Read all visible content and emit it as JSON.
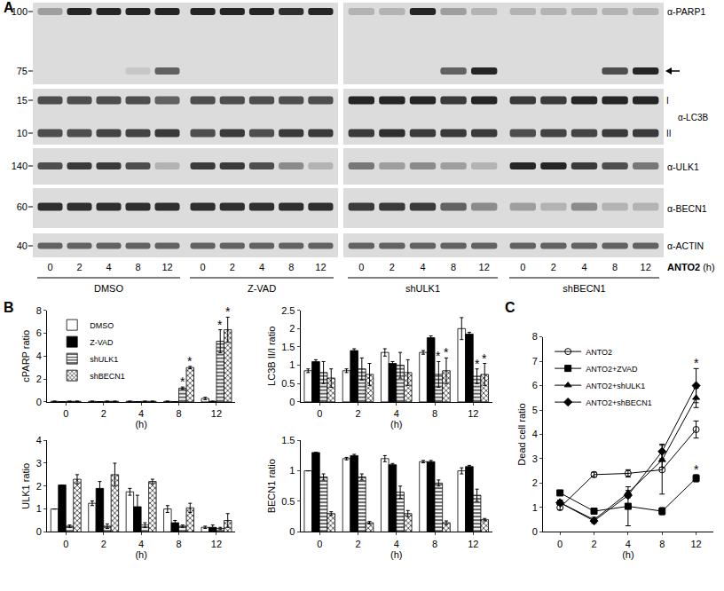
{
  "blot": {
    "panel": "A",
    "treatment": "ANTO2",
    "unit": "(h)",
    "groups": [
      {
        "name": "DMSO",
        "lanes": [
          "0",
          "2",
          "4",
          "8",
          "12"
        ]
      },
      {
        "name": "Z-VAD",
        "lanes": [
          "0",
          "2",
          "4",
          "8",
          "12"
        ]
      },
      {
        "name": "shULK1",
        "lanes": [
          "0",
          "2",
          "4",
          "8",
          "12"
        ]
      },
      {
        "name": "shBECN1",
        "lanes": [
          "0",
          "2",
          "4",
          "8",
          "12"
        ]
      }
    ],
    "rows": [
      {
        "antibody": "α-PARP1",
        "bands": [
          {
            "mw": 100,
            "intensity": [
              0.3,
              0.9,
              0.9,
              0.9,
              0.9,
              0.9,
              0.9,
              0.9,
              0.85,
              0.9,
              0.2,
              0.2,
              0.9,
              0.3,
              0.2,
              0.2,
              0.2,
              0.2,
              0.2,
              0.2
            ]
          },
          {
            "mw": 75,
            "arrow": true,
            "intensity": [
              0,
              0,
              0,
              0.1,
              0.6,
              0,
              0,
              0,
              0,
              0,
              0,
              0,
              0,
              0.6,
              0.9,
              0,
              0,
              0,
              0.7,
              0.9
            ]
          }
        ]
      },
      {
        "antibody": "α-LC3B",
        "bands": [
          {
            "mw": 15,
            "label": "I",
            "intensity": [
              0.7,
              0.7,
              0.7,
              0.7,
              0.6,
              0.7,
              0.7,
              0.7,
              0.7,
              0.7,
              0.9,
              0.9,
              0.9,
              0.8,
              0.9,
              0.8,
              0.8,
              0.9,
              0.9,
              0.9
            ]
          },
          {
            "mw": 10,
            "label": "II",
            "intensity": [
              0.7,
              0.7,
              0.75,
              0.75,
              0.8,
              0.7,
              0.8,
              0.7,
              0.8,
              0.8,
              0.8,
              0.85,
              0.8,
              0.8,
              0.8,
              0.7,
              0.75,
              0.75,
              0.8,
              0.8
            ]
          }
        ]
      },
      {
        "antibody": "α-ULK1",
        "bands": [
          {
            "mw": 140,
            "intensity": [
              0.7,
              0.8,
              0.8,
              0.7,
              0.2,
              0.8,
              0.8,
              0.7,
              0.4,
              0.2,
              0.5,
              0.3,
              0.4,
              0.3,
              0.2,
              0.9,
              0.9,
              0.8,
              0.7,
              0.5
            ]
          }
        ]
      },
      {
        "antibody": "α-BECN1",
        "bands": [
          {
            "mw": 60,
            "intensity": [
              0.85,
              0.85,
              0.85,
              0.85,
              0.85,
              0.85,
              0.85,
              0.85,
              0.85,
              0.85,
              0.8,
              0.8,
              0.8,
              0.6,
              0.4,
              0.3,
              0.2,
              0.4,
              0.2,
              0.2
            ]
          }
        ]
      },
      {
        "antibody": "α-ACTIN",
        "bands": [
          {
            "mw": 40,
            "intensity": [
              0.6,
              0.6,
              0.6,
              0.6,
              0.6,
              0.6,
              0.6,
              0.6,
              0.6,
              0.6,
              0.6,
              0.6,
              0.6,
              0.6,
              0.6,
              0.6,
              0.6,
              0.6,
              0.6,
              0.6
            ]
          }
        ]
      }
    ]
  },
  "chart_data": [
    {
      "type": "bar",
      "panel": "B",
      "y_label": "cPARP ratio",
      "x_label": "(h)",
      "categories": [
        "0",
        "2",
        "4",
        "8",
        "12"
      ],
      "ylim": [
        0,
        8
      ],
      "yticks": [
        0,
        2,
        4,
        6,
        8
      ],
      "grid": false,
      "legend": "top left",
      "series": [
        {
          "name": "DMSO",
          "color": "#ffffff",
          "marker": "solid",
          "values": [
            0.05,
            0.05,
            0.05,
            0.05,
            0.3
          ],
          "errors": [
            0.02,
            0.02,
            0.02,
            0.02,
            0.1
          ]
        },
        {
          "name": "Z-VAD",
          "color": "#000000",
          "marker": "solid",
          "values": [
            0.02,
            0.02,
            0.02,
            0.02,
            0.05
          ],
          "errors": [
            0,
            0,
            0,
            0,
            0.02
          ]
        },
        {
          "name": "shULK1",
          "color": "#ffffff",
          "marker": "hlines",
          "values": [
            0.05,
            0.05,
            0.05,
            1.2,
            5.3
          ],
          "errors": [
            0.02,
            0.02,
            0.02,
            0.1,
            1.0
          ]
        },
        {
          "name": "shBECN1",
          "color": "#ffffff",
          "marker": "checkered",
          "values": [
            0.05,
            0.05,
            0.05,
            3.0,
            6.3
          ],
          "errors": [
            0.02,
            0.02,
            0.02,
            0.1,
            1.1
          ]
        }
      ],
      "annotations": [
        {
          "text": "*",
          "category": "8",
          "series": "shULK1"
        },
        {
          "text": "*",
          "category": "8",
          "series": "shBECN1"
        },
        {
          "text": "*",
          "category": "12",
          "series": "shULK1"
        },
        {
          "text": "*",
          "category": "12",
          "series": "shBECN1"
        }
      ]
    },
    {
      "type": "bar",
      "y_label": "LC3B II/I ratio",
      "x_label": "(h)",
      "categories": [
        "0",
        "2",
        "4",
        "8",
        "12"
      ],
      "ylim": [
        0,
        2.5
      ],
      "yticks": [
        0,
        0.5,
        1,
        1.5,
        2,
        2.5
      ],
      "grid": false,
      "series": [
        {
          "name": "DMSO",
          "color": "#ffffff",
          "marker": "solid",
          "values": [
            0.85,
            0.85,
            1.35,
            1.35,
            2.0
          ],
          "errors": [
            0.05,
            0.05,
            0.1,
            0.05,
            0.3
          ]
        },
        {
          "name": "Z-VAD",
          "color": "#000000",
          "marker": "solid",
          "values": [
            1.1,
            1.4,
            1.05,
            1.75,
            1.85
          ],
          "errors": [
            0.05,
            0.05,
            0.05,
            0.05,
            0.05
          ]
        },
        {
          "name": "shULK1",
          "color": "#ffffff",
          "marker": "hlines",
          "values": [
            0.8,
            0.9,
            1.0,
            0.75,
            0.7
          ],
          "errors": [
            0.3,
            0.3,
            0.35,
            0.35,
            0.2
          ]
        },
        {
          "name": "shBECN1",
          "color": "#ffffff",
          "marker": "checkered",
          "values": [
            0.65,
            0.75,
            0.8,
            0.85,
            0.75
          ],
          "errors": [
            0.25,
            0.3,
            0.35,
            0.35,
            0.3
          ]
        }
      ],
      "annotations": [
        {
          "text": "*",
          "category": "8",
          "series": "shULK1"
        },
        {
          "text": "*",
          "category": "8",
          "series": "shBECN1"
        },
        {
          "text": "*",
          "category": "12",
          "series": "shULK1"
        },
        {
          "text": "*",
          "category": "12",
          "series": "shBECN1"
        }
      ]
    },
    {
      "type": "bar",
      "y_label": "ULK1 ratio",
      "x_label": "(h)",
      "categories": [
        "0",
        "2",
        "4",
        "8",
        "12"
      ],
      "ylim": [
        0,
        4
      ],
      "yticks": [
        0,
        1,
        2,
        3,
        4
      ],
      "grid": false,
      "series": [
        {
          "name": "DMSO",
          "color": "#ffffff",
          "marker": "solid",
          "values": [
            1.0,
            1.25,
            1.75,
            1.0,
            0.2
          ],
          "errors": [
            0,
            0.1,
            0.15,
            0.15,
            0.05
          ]
        },
        {
          "name": "Z-VAD",
          "color": "#000000",
          "marker": "solid",
          "values": [
            2.05,
            1.9,
            1.1,
            0.4,
            0.2
          ],
          "errors": [
            0,
            0.3,
            0.5,
            0.1,
            0.1
          ]
        },
        {
          "name": "shULK1",
          "color": "#ffffff",
          "marker": "hlines",
          "values": [
            0.25,
            0.25,
            0.3,
            0.25,
            0.15
          ],
          "errors": [
            0.05,
            0.1,
            0.1,
            0.05,
            0.05
          ]
        },
        {
          "name": "shBECN1",
          "color": "#ffffff",
          "marker": "checkered",
          "values": [
            2.3,
            2.5,
            2.2,
            1.05,
            0.5
          ],
          "errors": [
            0.2,
            0.5,
            0.1,
            0.2,
            0.3
          ]
        }
      ]
    },
    {
      "type": "bar",
      "y_label": "BECN1 ratio",
      "x_label": "(h)",
      "categories": [
        "0",
        "2",
        "4",
        "8",
        "12"
      ],
      "ylim": [
        0,
        1.5
      ],
      "yticks": [
        0,
        0.5,
        1,
        1.5
      ],
      "grid": false,
      "series": [
        {
          "name": "DMSO",
          "color": "#ffffff",
          "marker": "solid",
          "values": [
            1.0,
            1.2,
            1.2,
            1.15,
            1.0
          ],
          "errors": [
            0,
            0.02,
            0.05,
            0.02,
            0.05
          ]
        },
        {
          "name": "Z-VAD",
          "color": "#000000",
          "marker": "solid",
          "values": [
            1.3,
            1.25,
            1.1,
            1.15,
            1.07
          ],
          "errors": [
            0,
            0.02,
            0.02,
            0.02,
            0.02
          ]
        },
        {
          "name": "shULK1",
          "color": "#ffffff",
          "marker": "hlines",
          "values": [
            0.9,
            0.9,
            0.65,
            0.8,
            0.6
          ],
          "errors": [
            0.05,
            0.05,
            0.1,
            0.05,
            0.1
          ]
        },
        {
          "name": "shBECN1",
          "color": "#ffffff",
          "marker": "checkered",
          "values": [
            0.3,
            0.15,
            0.3,
            0.15,
            0.2
          ],
          "errors": [
            0.03,
            0.02,
            0.05,
            0.03,
            0.02
          ]
        }
      ]
    },
    {
      "type": "line",
      "panel": "C",
      "y_label": "Dead cell ratio",
      "x_label": "(h)",
      "categories": [
        "0",
        "2",
        "4",
        "8",
        "12"
      ],
      "ylim": [
        0,
        8
      ],
      "yticks": [
        0,
        1,
        2,
        3,
        4,
        5,
        6,
        7,
        8
      ],
      "grid": false,
      "legend": "top left",
      "series": [
        {
          "name": "ANTO2",
          "color": "#000000",
          "marker": "circle-open",
          "values": [
            1.0,
            2.35,
            2.4,
            2.55,
            4.2
          ],
          "errors": [
            0.1,
            0.1,
            0.15,
            1.0,
            0.35
          ]
        },
        {
          "name": "ANTO2+ZVAD",
          "color": "#000000",
          "marker": "square",
          "values": [
            1.6,
            0.85,
            1.05,
            0.85,
            2.2
          ],
          "errors": [
            0.1,
            0.1,
            0.8,
            0.15,
            0.15
          ]
        },
        {
          "name": "ANTO2+shULK1",
          "color": "#000000",
          "marker": "triangle-up",
          "values": [
            1.2,
            0.5,
            1.6,
            2.95,
            5.5
          ],
          "errors": [
            0.1,
            0.1,
            0.1,
            0.3,
            0.4
          ]
        },
        {
          "name": "ANTO2+shBECN1",
          "color": "#000000",
          "marker": "diamond",
          "values": [
            1.2,
            0.45,
            1.5,
            3.3,
            6.0
          ],
          "errors": [
            0.1,
            0.1,
            0.1,
            0.3,
            0.7
          ]
        }
      ],
      "annotations": [
        {
          "text": "*",
          "category": "12",
          "series": "ANTO2+shBECN1"
        },
        {
          "text": "*",
          "category": "12",
          "series": "ANTO2+ZVAD"
        }
      ]
    }
  ]
}
